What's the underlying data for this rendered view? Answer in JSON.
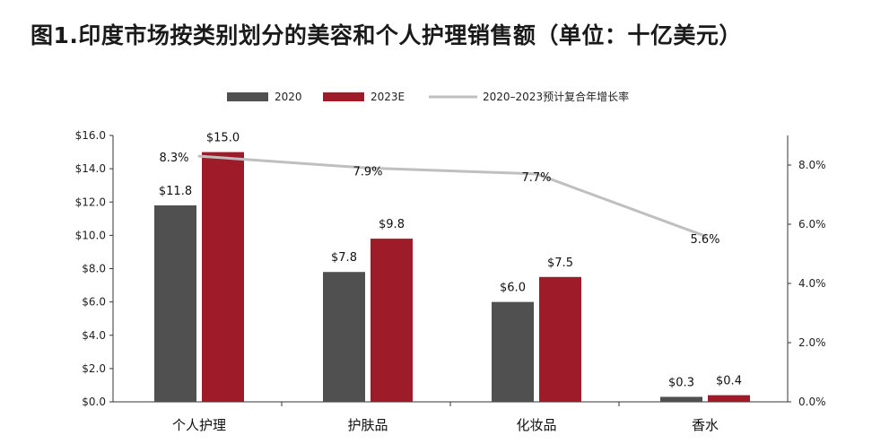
{
  "chart_data": {
    "type": "bar",
    "title": "图1.印度市场按类别划分的美容和个人护理销售额（单位：十亿美元）",
    "categories": [
      "个人护理",
      "护肤品",
      "化妆品",
      "香水"
    ],
    "series": [
      {
        "name": "2020",
        "color": "#505050",
        "values": [
          11.8,
          7.8,
          6.0,
          0.3
        ],
        "labels": [
          "$11.8",
          "$7.8",
          "$6.0",
          "$0.3"
        ]
      },
      {
        "name": "2023E",
        "color": "#9e1b2a",
        "values": [
          15.0,
          9.8,
          7.5,
          0.4
        ],
        "labels": [
          "$15.0",
          "$9.8",
          "$7.5",
          "$0.4"
        ]
      }
    ],
    "line_series": {
      "name": "2020–2023预计复合年增长率",
      "color": "#bfbfbf",
      "values": [
        8.3,
        7.9,
        7.7,
        5.6
      ],
      "labels": [
        "8.3%",
        "7.9%",
        "7.7%",
        "5.6%"
      ]
    },
    "y_left": {
      "min": 0,
      "max": 16,
      "ticks": [
        "$0.0",
        "$2.0",
        "$4.0",
        "$6.0",
        "$8.0",
        "$10.0",
        "$12.0",
        "$14.0",
        "$16.0"
      ]
    },
    "y_right": {
      "min": 0,
      "max": 9,
      "tick_values": [
        0,
        2,
        4,
        6,
        8
      ],
      "ticks": [
        "0.0%",
        "2.0%",
        "4.0%",
        "6.0%",
        "8.0%"
      ]
    },
    "legend": {
      "position": "top",
      "entries": [
        "2020",
        "2023E",
        "2020–2023预计复合年增长率"
      ]
    }
  }
}
